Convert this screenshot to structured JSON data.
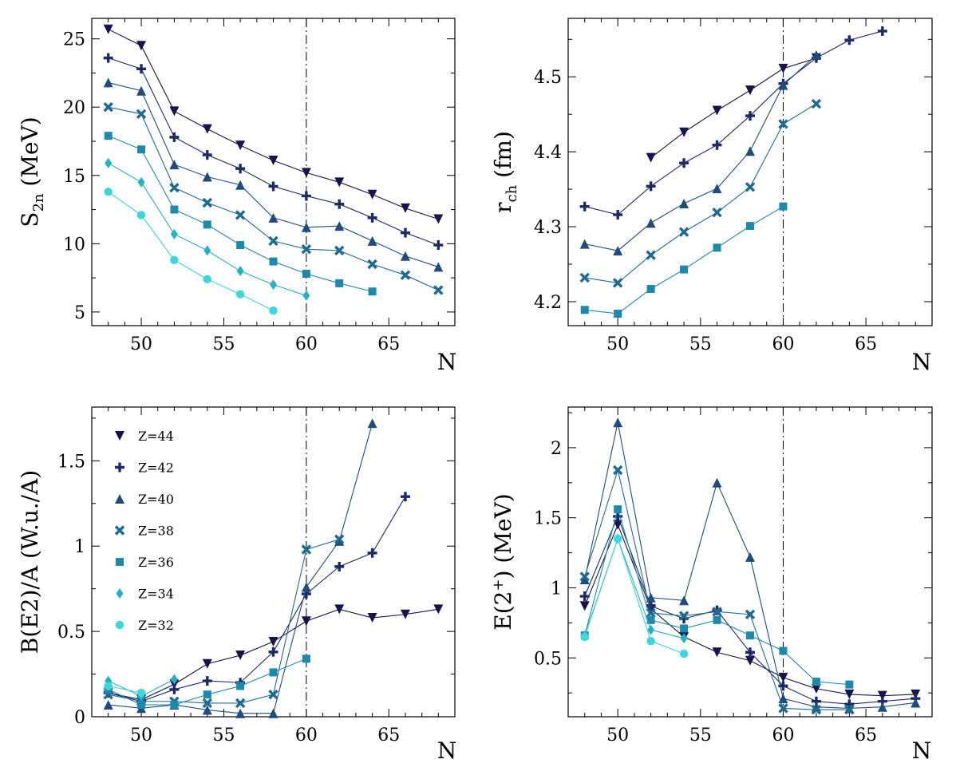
{
  "figure": {
    "background": "#ffffff",
    "series_styles": [
      {
        "name": "Z=44",
        "color": "#16154a",
        "marker": "triangle-down"
      },
      {
        "name": "Z=42",
        "color": "#1c2a66",
        "marker": "plus"
      },
      {
        "name": "Z=40",
        "color": "#1f4b7d",
        "marker": "triangle-up"
      },
      {
        "name": "Z=38",
        "color": "#1f6a91",
        "marker": "x"
      },
      {
        "name": "Z=36",
        "color": "#1e8aab",
        "marker": "square"
      },
      {
        "name": "Z=34",
        "color": "#22b2c4",
        "marker": "diamond"
      },
      {
        "name": "Z=32",
        "color": "#3cd6dc",
        "marker": "circle"
      }
    ]
  },
  "chart_data": [
    {
      "type": "line",
      "ylabel_main": "S",
      "ylabel_sub": "2n",
      "ylabel_rest": " (MeV)",
      "xlabel": "N",
      "xlim": [
        47,
        69
      ],
      "ylim": [
        4,
        26.5
      ],
      "xticks": [
        50,
        55,
        60,
        65
      ],
      "yticks": [
        5,
        10,
        15,
        20,
        25
      ],
      "yticks_text": [
        "5",
        "10",
        "15",
        "20",
        "25"
      ],
      "vline": 60,
      "legend": null,
      "series": [
        {
          "style": 0,
          "points": [
            [
              48,
              25.7
            ],
            [
              50,
              24.5
            ],
            [
              52,
              19.7
            ],
            [
              54,
              18.4
            ],
            [
              56,
              17.2
            ],
            [
              58,
              16.1
            ],
            [
              60,
              15.2
            ],
            [
              62,
              14.5
            ],
            [
              64,
              13.6
            ],
            [
              66,
              12.6
            ],
            [
              68,
              11.8
            ]
          ]
        },
        {
          "style": 1,
          "points": [
            [
              48,
              23.6
            ],
            [
              50,
              22.8
            ],
            [
              52,
              17.8
            ],
            [
              54,
              16.5
            ],
            [
              56,
              15.5
            ],
            [
              58,
              14.2
            ],
            [
              60,
              13.5
            ],
            [
              62,
              12.9
            ],
            [
              64,
              11.9
            ],
            [
              66,
              10.8
            ],
            [
              68,
              9.9
            ]
          ]
        },
        {
          "style": 2,
          "points": [
            [
              48,
              21.8
            ],
            [
              50,
              21.2
            ],
            [
              52,
              15.8
            ],
            [
              54,
              14.9
            ],
            [
              56,
              14.3
            ],
            [
              58,
              11.9
            ],
            [
              60,
              11.2
            ],
            [
              62,
              11.3
            ],
            [
              64,
              10.2
            ],
            [
              66,
              9.1
            ],
            [
              68,
              8.3
            ]
          ]
        },
        {
          "style": 3,
          "points": [
            [
              48,
              20.0
            ],
            [
              50,
              19.5
            ],
            [
              52,
              14.1
            ],
            [
              54,
              13.0
            ],
            [
              56,
              12.1
            ],
            [
              58,
              10.2
            ],
            [
              60,
              9.6
            ],
            [
              62,
              9.5
            ],
            [
              64,
              8.5
            ],
            [
              66,
              7.7
            ],
            [
              68,
              6.6
            ]
          ]
        },
        {
          "style": 4,
          "points": [
            [
              48,
              17.9
            ],
            [
              50,
              16.9
            ],
            [
              52,
              12.5
            ],
            [
              54,
              11.4
            ],
            [
              56,
              9.9
            ],
            [
              58,
              8.7
            ],
            [
              60,
              7.8
            ],
            [
              62,
              7.1
            ],
            [
              64,
              6.5
            ]
          ]
        },
        {
          "style": 5,
          "points": [
            [
              48,
              15.9
            ],
            [
              50,
              14.5
            ],
            [
              52,
              10.7
            ],
            [
              54,
              9.5
            ],
            [
              56,
              8.0
            ],
            [
              58,
              7.0
            ],
            [
              60,
              6.2
            ]
          ]
        },
        {
          "style": 6,
          "points": [
            [
              48,
              13.8
            ],
            [
              50,
              12.1
            ],
            [
              52,
              8.8
            ],
            [
              54,
              7.4
            ],
            [
              56,
              6.3
            ],
            [
              58,
              5.1
            ]
          ]
        }
      ]
    },
    {
      "type": "line",
      "ylabel_main": "r",
      "ylabel_sub": "ch",
      "ylabel_rest": " (fm)",
      "xlabel": "N",
      "xlim": [
        47,
        69
      ],
      "ylim": [
        4.168,
        4.578
      ],
      "xticks": [
        50,
        55,
        60,
        65
      ],
      "yticks": [
        4.2,
        4.3,
        4.4,
        4.5
      ],
      "yticks_text": [
        "4.2",
        "4.3",
        "4.4",
        "4.5"
      ],
      "vline": 60,
      "legend": null,
      "series": [
        {
          "style": 0,
          "points": [
            [
              52,
              4.392
            ],
            [
              54,
              4.426
            ],
            [
              56,
              4.455
            ],
            [
              58,
              4.482
            ],
            [
              60,
              4.511
            ],
            [
              62,
              4.525
            ]
          ]
        },
        {
          "style": 1,
          "points": [
            [
              48,
              4.327
            ],
            [
              50,
              4.316
            ],
            [
              52,
              4.354
            ],
            [
              54,
              4.385
            ],
            [
              56,
              4.409
            ],
            [
              58,
              4.448
            ],
            [
              60,
              4.491
            ],
            [
              62,
              4.525
            ],
            [
              64,
              4.549
            ],
            [
              66,
              4.561
            ]
          ]
        },
        {
          "style": 2,
          "points": [
            [
              48,
              4.277
            ],
            [
              50,
              4.268
            ],
            [
              52,
              4.305
            ],
            [
              54,
              4.331
            ],
            [
              56,
              4.351
            ],
            [
              58,
              4.401
            ],
            [
              60,
              4.489
            ],
            [
              62,
              4.529
            ]
          ]
        },
        {
          "style": 3,
          "points": [
            [
              48,
              4.232
            ],
            [
              50,
              4.225
            ],
            [
              52,
              4.262
            ],
            [
              54,
              4.293
            ],
            [
              56,
              4.319
            ],
            [
              58,
              4.353
            ],
            [
              60,
              4.437
            ],
            [
              62,
              4.464
            ]
          ]
        },
        {
          "style": 4,
          "points": [
            [
              48,
              4.189
            ],
            [
              50,
              4.184
            ],
            [
              52,
              4.217
            ],
            [
              54,
              4.243
            ],
            [
              56,
              4.272
            ],
            [
              58,
              4.301
            ],
            [
              60,
              4.327
            ]
          ]
        }
      ]
    },
    {
      "type": "line",
      "ylabel_main": "B(E2)/A (W.u./A)",
      "ylabel_sub": "",
      "ylabel_rest": "",
      "xlabel": "N",
      "xlim": [
        47,
        69
      ],
      "ylim": [
        0,
        1.815
      ],
      "xticks": [
        50,
        55,
        60,
        65
      ],
      "yticks": [
        0,
        0.5,
        1,
        1.5
      ],
      "yticks_text": [
        "0",
        "0.5",
        "1",
        "1.5"
      ],
      "vline": 60,
      "legend": {
        "entries": [
          "Z=44",
          "Z=42",
          "Z=40",
          "Z=38",
          "Z=36",
          "Z=34",
          "Z=32"
        ],
        "placement": "upper-left"
      },
      "series": [
        {
          "style": 0,
          "points": [
            [
              48,
              0.14
            ],
            [
              50,
              0.1
            ],
            [
              52,
              0.19
            ],
            [
              54,
              0.31
            ],
            [
              56,
              0.36
            ],
            [
              58,
              0.44
            ],
            [
              60,
              0.56
            ],
            [
              62,
              0.63
            ],
            [
              64,
              0.58
            ],
            [
              66,
              0.6
            ],
            [
              68,
              0.63
            ]
          ]
        },
        {
          "style": 1,
          "points": [
            [
              48,
              0.14
            ],
            [
              50,
              0.09
            ],
            [
              52,
              0.16
            ],
            [
              54,
              0.21
            ],
            [
              56,
              0.2
            ],
            [
              58,
              0.38
            ],
            [
              60,
              0.72
            ],
            [
              62,
              0.88
            ],
            [
              64,
              0.96
            ],
            [
              66,
              1.29
            ]
          ]
        },
        {
          "style": 2,
          "points": [
            [
              48,
              0.07
            ],
            [
              50,
              0.05
            ],
            [
              52,
              0.07
            ],
            [
              54,
              0.04
            ],
            [
              56,
              0.02
            ],
            [
              58,
              0.02
            ],
            [
              60,
              0.76
            ],
            [
              62,
              1.03
            ],
            [
              64,
              1.72
            ]
          ]
        },
        {
          "style": 3,
          "points": [
            [
              48,
              0.13
            ],
            [
              50,
              0.09
            ],
            [
              52,
              0.09
            ],
            [
              54,
              0.08
            ],
            [
              56,
              0.08
            ],
            [
              58,
              0.13
            ],
            [
              60,
              0.98
            ],
            [
              62,
              1.04
            ]
          ]
        },
        {
          "style": 4,
          "points": [
            [
              48,
              0.16
            ],
            [
              50,
              0.07
            ],
            [
              52,
              0.07
            ],
            [
              54,
              0.13
            ],
            [
              56,
              0.18
            ],
            [
              58,
              0.26
            ],
            [
              60,
              0.34
            ]
          ]
        },
        {
          "style": 5,
          "points": [
            [
              48,
              0.21
            ],
            [
              50,
              0.12
            ],
            [
              52,
              0.22
            ]
          ]
        },
        {
          "style": 6,
          "points": [
            [
              48,
              0.18
            ],
            [
              50,
              0.14
            ]
          ]
        }
      ]
    },
    {
      "type": "line",
      "ylabel_main": "E(2",
      "ylabel_sup": "+",
      "ylabel_rest": ") (MeV)",
      "xlabel": "N",
      "xlim": [
        47,
        69
      ],
      "ylim": [
        0.08,
        2.29
      ],
      "xticks": [
        50,
        55,
        60,
        65
      ],
      "yticks": [
        0.5,
        1,
        1.5,
        2
      ],
      "yticks_text": [
        "0.5",
        "1",
        "1.5",
        "2"
      ],
      "vline": 60,
      "legend": null,
      "series": [
        {
          "style": 0,
          "points": [
            [
              48,
              0.87
            ],
            [
              50,
              1.45
            ],
            [
              52,
              0.85
            ],
            [
              54,
              0.65
            ],
            [
              56,
              0.54
            ],
            [
              58,
              0.48
            ],
            [
              60,
              0.36
            ],
            [
              62,
              0.28
            ],
            [
              64,
              0.24
            ],
            [
              66,
              0.23
            ],
            [
              68,
              0.24
            ]
          ]
        },
        {
          "style": 1,
          "points": [
            [
              48,
              0.94
            ],
            [
              50,
              1.51
            ],
            [
              52,
              0.87
            ],
            [
              54,
              0.78
            ],
            [
              56,
              0.84
            ],
            [
              58,
              0.54
            ],
            [
              60,
              0.3
            ],
            [
              62,
              0.19
            ],
            [
              64,
              0.17
            ],
            [
              66,
              0.19
            ],
            [
              68,
              0.21
            ]
          ]
        },
        {
          "style": 2,
          "points": [
            [
              48,
              1.06
            ],
            [
              50,
              2.18
            ],
            [
              52,
              0.93
            ],
            [
              54,
              0.91
            ],
            [
              56,
              1.75
            ],
            [
              58,
              1.22
            ],
            [
              60,
              0.21
            ],
            [
              62,
              0.15
            ],
            [
              64,
              0.14
            ],
            [
              66,
              0.15
            ],
            [
              68,
              0.18
            ]
          ]
        },
        {
          "style": 3,
          "points": [
            [
              48,
              1.08
            ],
            [
              50,
              1.84
            ],
            [
              52,
              0.82
            ],
            [
              54,
              0.8
            ],
            [
              56,
              0.83
            ],
            [
              58,
              0.81
            ],
            [
              60,
              0.14
            ],
            [
              62,
              0.13
            ],
            [
              64,
              0.13
            ]
          ]
        },
        {
          "style": 4,
          "points": [
            [
              48,
              0.66
            ],
            [
              50,
              1.56
            ],
            [
              52,
              0.77
            ],
            [
              54,
              0.71
            ],
            [
              56,
              0.77
            ],
            [
              58,
              0.66
            ],
            [
              60,
              0.55
            ],
            [
              62,
              0.33
            ],
            [
              64,
              0.31
            ]
          ]
        },
        {
          "style": 5,
          "points": [
            [
              48,
              0.66
            ],
            [
              50,
              1.35
            ],
            [
              52,
              0.7
            ],
            [
              54,
              0.64
            ]
          ]
        },
        {
          "style": 6,
          "points": [
            [
              48,
              0.65
            ],
            [
              50,
              1.35
            ],
            [
              52,
              0.62
            ],
            [
              54,
              0.53
            ]
          ]
        }
      ]
    }
  ]
}
